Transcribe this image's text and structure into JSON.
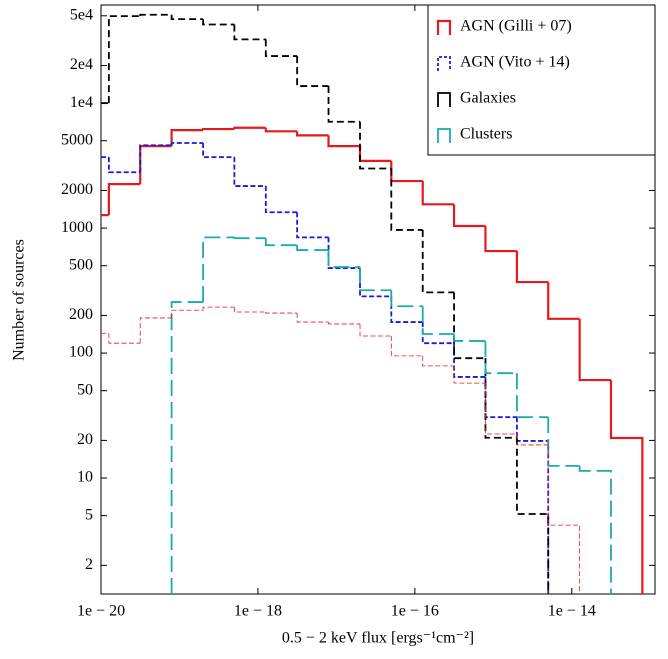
{
  "chart_data": {
    "type": "histogram",
    "xlabel": "0.5 − 2 keV flux [ergs⁻¹cm⁻²]",
    "ylabel": "Number of sources",
    "xscale": "log",
    "yscale": "log",
    "xlim": [
      1e-20,
      1.15e-13
    ],
    "ylim": [
      1.18,
      61000
    ],
    "xticks": [
      {
        "value": 1e-20,
        "label": "1e − 20"
      },
      {
        "value": 1e-18,
        "label": "1e − 18"
      },
      {
        "value": 1e-16,
        "label": "1e − 16"
      },
      {
        "value": 1e-14,
        "label": "1e − 14"
      }
    ],
    "yticks": [
      {
        "value": 50000,
        "label": "5e4"
      },
      {
        "value": 20000,
        "label": "2e4"
      },
      {
        "value": 10000,
        "label": "1e4"
      },
      5000,
      2000,
      1000,
      500,
      200,
      100,
      50,
      20,
      10,
      5,
      2
    ],
    "legend": "upper right",
    "bins": [
      1e-20,
      1.26e-20,
      3.16e-20,
      7.94e-20,
      2e-19,
      5.01e-19,
      1.26e-18,
      3.16e-18,
      7.94e-18,
      2e-17,
      5.01e-17,
      1.26e-16,
      3.16e-16,
      7.94e-16,
      2e-15,
      5.01e-15,
      1.26e-14,
      3.16e-14,
      7.94e-14
    ],
    "series": [
      {
        "name": "AGN (Gilli + 07)",
        "color": "#e41a1c",
        "linestyle": "solid",
        "linewidth": 2.2,
        "values": [
          1270,
          2250,
          4530,
          6080,
          6200,
          6350,
          5950,
          5520,
          4530,
          3450,
          2380,
          1550,
          1040,
          655,
          370,
          188,
          60.8,
          20.9
        ]
      },
      {
        "name": "AGN (Vito + 14)",
        "color": "#1a1adc",
        "linestyle": "dotted",
        "linewidth": 1.8,
        "values": [
          3700,
          2800,
          4600,
          4800,
          3700,
          2170,
          1340,
          843,
          479,
          284,
          177,
          120,
          64.4,
          30.7,
          19.8,
          null,
          null,
          null
        ]
      },
      {
        "name": "Galaxies",
        "color": "#000000",
        "linestyle": "dashed",
        "linewidth": 1.8,
        "values": [
          10000,
          49700,
          51000,
          47000,
          42600,
          32400,
          23800,
          13700,
          7100,
          3000,
          967,
          306,
          91,
          21,
          5.15,
          null,
          null,
          null
        ]
      },
      {
        "name": "Clusters",
        "color": "#1aabab",
        "linestyle": "longdash",
        "linewidth": 1.8,
        "values": [
          null,
          null,
          null,
          256,
          843,
          830,
          730,
          667,
          488,
          318,
          237,
          142,
          125,
          69,
          30.7,
          12.5,
          11.4,
          null
        ]
      },
      {
        "color": "#e41a1c",
        "linestyle": "dotted",
        "linewidth": 0.8,
        "values": [
          144,
          120,
          191,
          220,
          233,
          213,
          209,
          177,
          171,
          137,
          95,
          79,
          57.5,
          22.5,
          18.4,
          4.2,
          null,
          null
        ]
      }
    ]
  }
}
